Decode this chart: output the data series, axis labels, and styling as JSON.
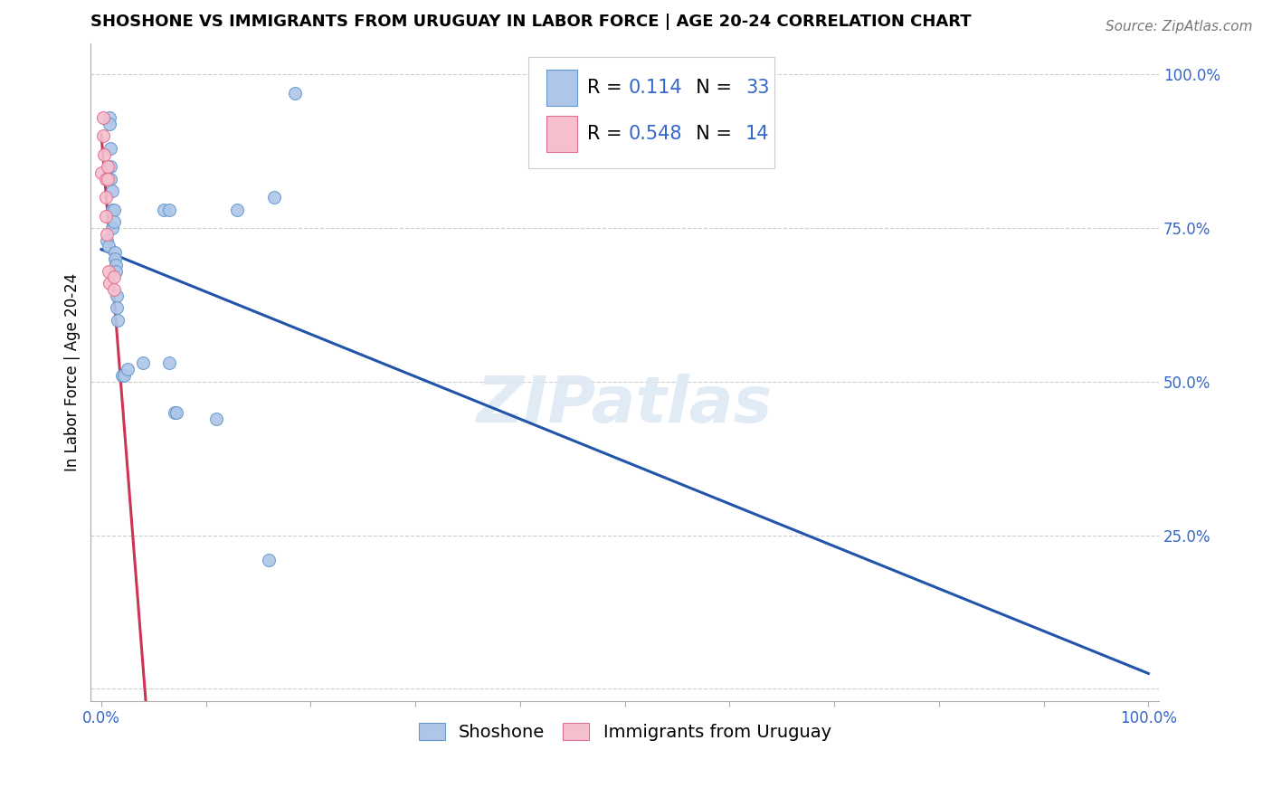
{
  "title": "SHOSHONE VS IMMIGRANTS FROM URUGUAY IN LABOR FORCE | AGE 20-24 CORRELATION CHART",
  "source": "Source: ZipAtlas.com",
  "ylabel": "In Labor Force | Age 20-24",
  "xlim": [
    0.0,
    1.0
  ],
  "ylim": [
    0.0,
    1.0
  ],
  "x_ticks": [
    0.0,
    0.1,
    0.2,
    0.3,
    0.4,
    0.5,
    0.6,
    0.7,
    0.8,
    0.9,
    1.0
  ],
  "y_ticks": [
    0.0,
    0.25,
    0.5,
    0.75,
    1.0
  ],
  "shoshone_x": [
    0.005,
    0.007,
    0.008,
    0.008,
    0.009,
    0.009,
    0.009,
    0.01,
    0.01,
    0.01,
    0.012,
    0.012,
    0.013,
    0.013,
    0.014,
    0.014,
    0.015,
    0.015,
    0.016,
    0.02,
    0.022,
    0.025,
    0.04,
    0.06,
    0.065,
    0.065,
    0.07,
    0.072,
    0.11,
    0.13,
    0.16,
    0.165,
    0.185
  ],
  "shoshone_y": [
    0.73,
    0.72,
    0.93,
    0.92,
    0.88,
    0.85,
    0.83,
    0.81,
    0.78,
    0.75,
    0.78,
    0.76,
    0.71,
    0.7,
    0.69,
    0.68,
    0.64,
    0.62,
    0.6,
    0.51,
    0.51,
    0.52,
    0.53,
    0.78,
    0.53,
    0.78,
    0.45,
    0.45,
    0.44,
    0.78,
    0.21,
    0.8,
    0.97
  ],
  "uruguay_x": [
    0.0,
    0.002,
    0.002,
    0.003,
    0.004,
    0.004,
    0.004,
    0.005,
    0.006,
    0.006,
    0.007,
    0.008,
    0.012,
    0.012
  ],
  "uruguay_y": [
    0.84,
    0.93,
    0.9,
    0.87,
    0.83,
    0.8,
    0.77,
    0.74,
    0.85,
    0.83,
    0.68,
    0.66,
    0.67,
    0.65
  ],
  "shoshone_color": "#aec6e8",
  "shoshone_edge_color": "#6699cc",
  "uruguay_color": "#f5bfce",
  "uruguay_edge_color": "#e07090",
  "trendline_shoshone_color": "#2255aa",
  "trendline_uruguay_color": "#cc3355",
  "R_shoshone": 0.114,
  "N_shoshone": 33,
  "R_uruguay": 0.548,
  "N_uruguay": 14,
  "legend_label_shoshone": "Shoshone",
  "legend_label_uruguay": "Immigrants from Uruguay",
  "grid_color": "#c8c8c8",
  "background_color": "#ffffff",
  "marker_size": 100,
  "title_fontsize": 13,
  "axis_label_fontsize": 12,
  "tick_fontsize": 12,
  "legend_fontsize": 14,
  "source_fontsize": 11
}
